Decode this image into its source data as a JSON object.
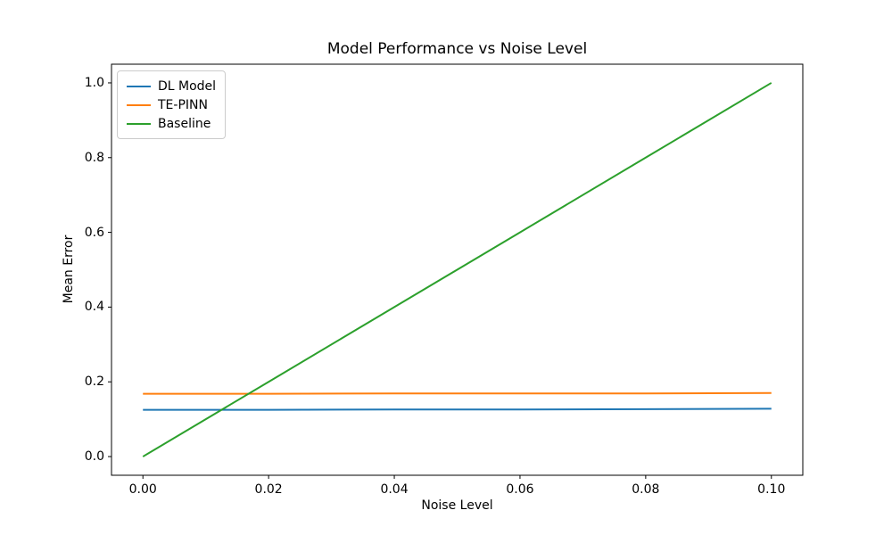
{
  "chart_data": {
    "type": "line",
    "title": "Model Performance vs Noise Level",
    "xlabel": "Noise Level",
    "ylabel": "Mean Error",
    "x": [
      0.0,
      0.02,
      0.04,
      0.06,
      0.08,
      0.1
    ],
    "series": [
      {
        "name": "DL Model",
        "color": "#1f77b4",
        "values": [
          0.125,
          0.125,
          0.126,
          0.126,
          0.127,
          0.128
        ]
      },
      {
        "name": "TE-PINN",
        "color": "#ff7f0e",
        "values": [
          0.168,
          0.168,
          0.169,
          0.169,
          0.169,
          0.17
        ]
      },
      {
        "name": "Baseline",
        "color": "#2ca02c",
        "values": [
          0.0,
          0.2,
          0.4,
          0.6,
          0.8,
          1.0
        ]
      }
    ],
    "xlim": [
      -0.005,
      0.105
    ],
    "ylim": [
      -0.05,
      1.05
    ],
    "xticks": {
      "values": [
        0.0,
        0.02,
        0.04,
        0.06,
        0.08,
        0.1
      ],
      "labels": [
        "0.00",
        "0.02",
        "0.04",
        "0.06",
        "0.08",
        "0.10"
      ]
    },
    "yticks": {
      "values": [
        0.0,
        0.2,
        0.4,
        0.6,
        0.8,
        1.0
      ],
      "labels": [
        "0.0",
        "0.2",
        "0.4",
        "0.6",
        "0.8",
        "1.0"
      ]
    },
    "legend": {
      "position": "upper left"
    },
    "grid": false,
    "colors": {
      "spine": "#000000",
      "background": "#ffffff",
      "text": "#000000",
      "legend_border": "#cccccc"
    }
  }
}
